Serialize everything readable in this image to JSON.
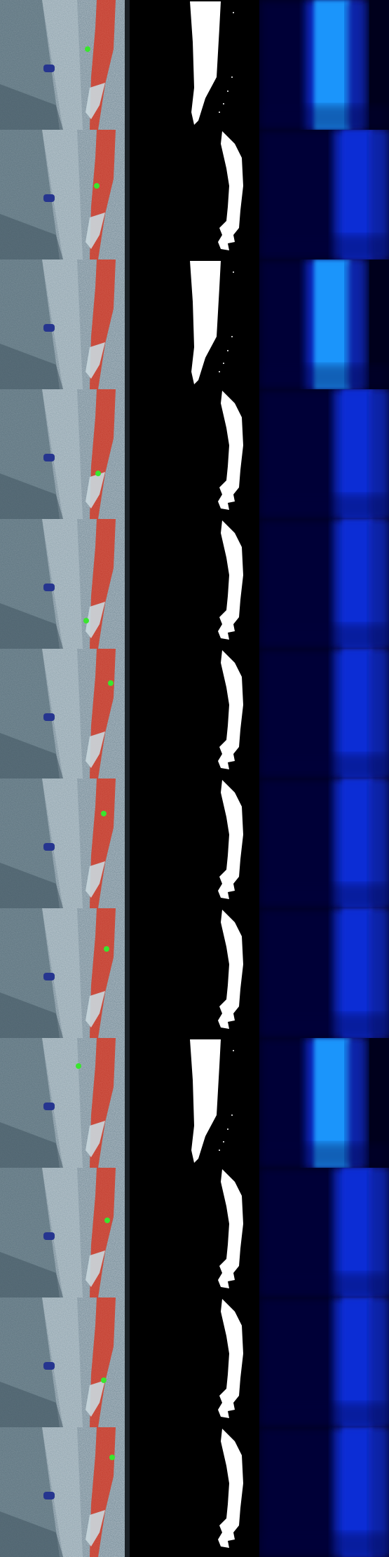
{
  "panel_rows": [
    {
      "index": 1,
      "mask_variant": "wide",
      "heat_variant": "bright"
    },
    {
      "index": 2,
      "mask_variant": "thin",
      "heat_variant": "dim"
    },
    {
      "index": 3,
      "mask_variant": "wide",
      "heat_variant": "bright"
    },
    {
      "index": 4,
      "mask_variant": "thin",
      "heat_variant": "dim"
    },
    {
      "index": 5,
      "mask_variant": "thin",
      "heat_variant": "dim"
    },
    {
      "index": 6,
      "mask_variant": "thin",
      "heat_variant": "dim"
    },
    {
      "index": 7,
      "mask_variant": "thin",
      "heat_variant": "dim"
    },
    {
      "index": 8,
      "mask_variant": "thin",
      "heat_variant": "dim"
    },
    {
      "index": 9,
      "mask_variant": "wide",
      "heat_variant": "bright"
    },
    {
      "index": 10,
      "mask_variant": "thin",
      "heat_variant": "dim"
    },
    {
      "index": 11,
      "mask_variant": "thin",
      "heat_variant": "dim"
    },
    {
      "index": 12,
      "mask_variant": "thin",
      "heat_variant": "dim"
    }
  ],
  "colors": {
    "background": "#000000",
    "scan_base": "#6f8591",
    "scan_light": "#c9d8de",
    "segment_red": "#c0392b",
    "segment_blue": "#26358f",
    "point_green": "#39e62e",
    "mask_white": "#ffffff",
    "heat_dark": "#00001c",
    "heat_mid": "#0a2fd8",
    "heat_bright": "#1e9bff"
  },
  "icons": {
    "click_point": "green-dot-icon"
  }
}
